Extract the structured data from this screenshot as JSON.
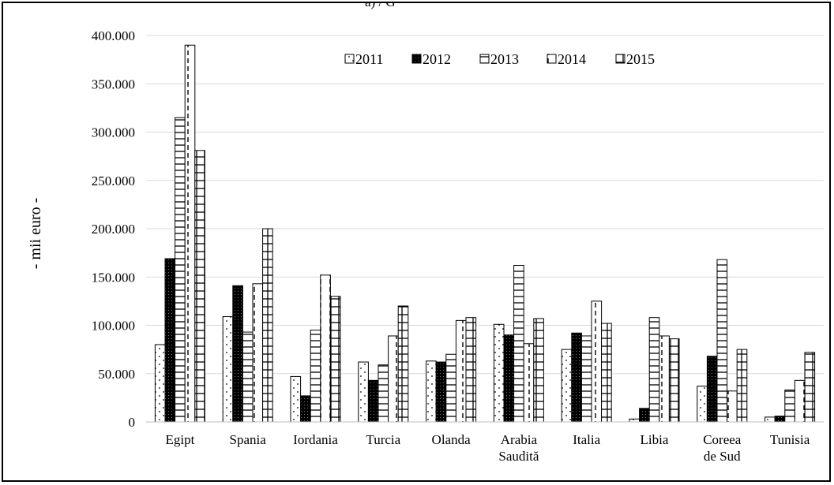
{
  "chart_data": {
    "type": "bar",
    "title": "",
    "top_fragment": "a) / G",
    "ylabel": "- mii euro -",
    "xlabel": "",
    "ylim": [
      0,
      400000
    ],
    "y_ticks": [
      0,
      50000,
      100000,
      150000,
      200000,
      250000,
      300000,
      350000,
      400000
    ],
    "y_tick_labels": [
      "0",
      "50.000",
      "100.000",
      "150.000",
      "200.000",
      "250.000",
      "300.000",
      "350.000",
      "400.000"
    ],
    "grid": true,
    "legend_position": "top",
    "categories": [
      [
        "Egipt"
      ],
      [
        "Spania"
      ],
      [
        "Iordania"
      ],
      [
        "Turcia"
      ],
      [
        "Olanda"
      ],
      [
        "Arabia",
        "Saudită"
      ],
      [
        "Italia"
      ],
      [
        "Libia"
      ],
      [
        "Coreea",
        "de Sud"
      ],
      [
        "Tunisia"
      ]
    ],
    "series": [
      {
        "name": "2011",
        "pattern": "dots",
        "values": [
          80000,
          109000,
          47000,
          62000,
          63000,
          101000,
          75000,
          3000,
          37000,
          5000
        ]
      },
      {
        "name": "2012",
        "pattern": "dense-dark",
        "values": [
          169000,
          141000,
          27000,
          43000,
          62000,
          90000,
          92000,
          14000,
          68000,
          6000
        ]
      },
      {
        "name": "2013",
        "pattern": "h-lines",
        "values": [
          315000,
          93000,
          95000,
          59000,
          70000,
          162000,
          89000,
          108000,
          168000,
          33000
        ]
      },
      {
        "name": "2014",
        "pattern": "v-dashes",
        "values": [
          390000,
          143000,
          152000,
          89000,
          105000,
          81000,
          125000,
          89000,
          32000,
          43000
        ]
      },
      {
        "name": "2015",
        "pattern": "brick",
        "values": [
          281000,
          200000,
          130000,
          120000,
          108000,
          107000,
          102000,
          86000,
          75000,
          72000
        ]
      }
    ]
  }
}
